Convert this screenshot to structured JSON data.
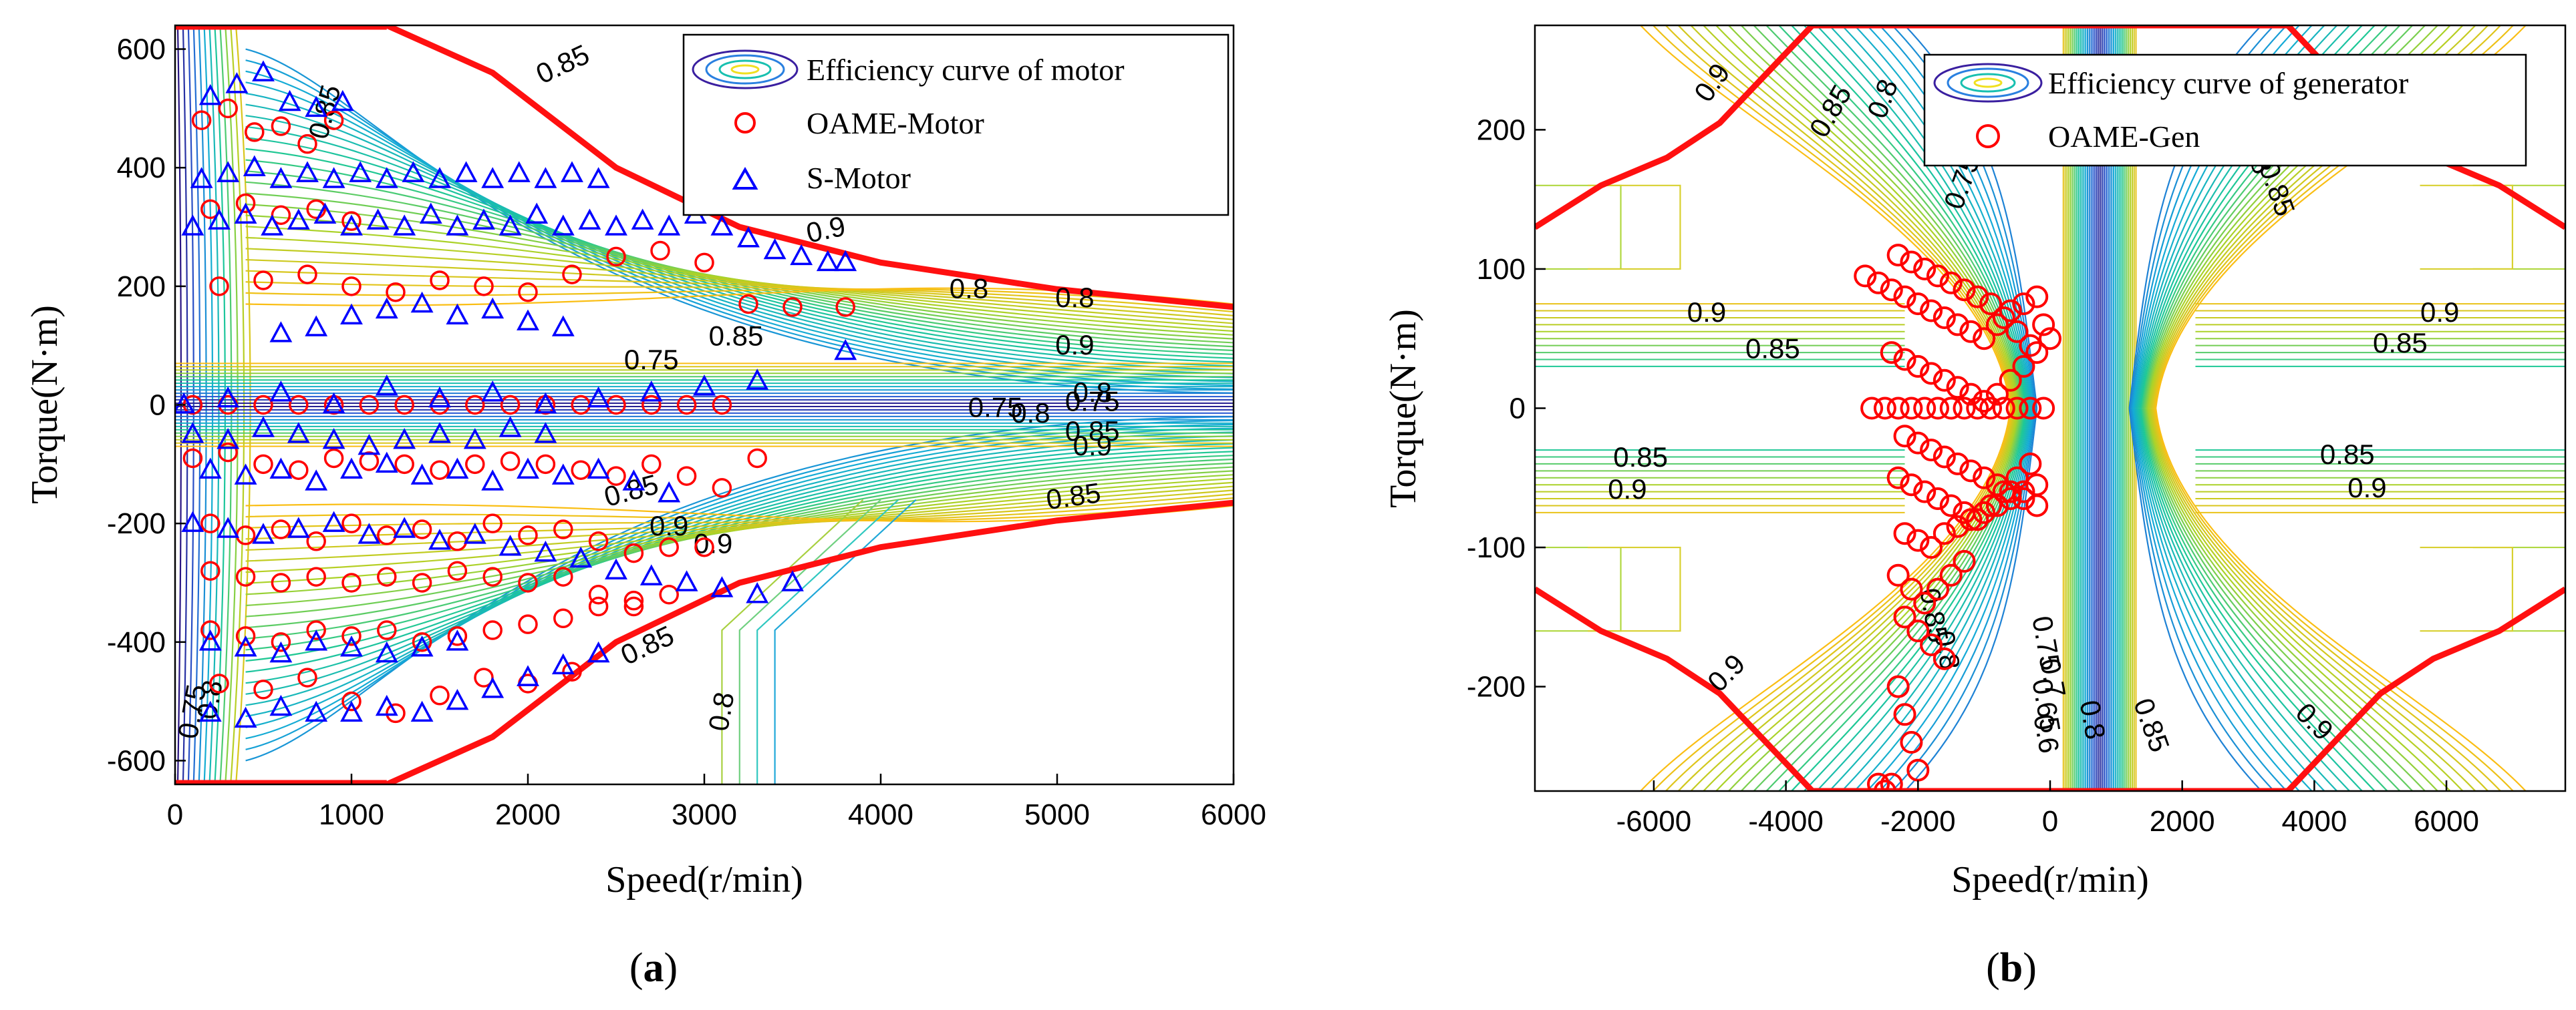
{
  "chart_data": [
    {
      "id": "a",
      "type": "scatter",
      "caption_letter": "a",
      "xlabel": "Speed(r/min)",
      "ylabel": "Torque(N·m)",
      "xlim": [
        0,
        6000
      ],
      "ylim": [
        -640,
        640
      ],
      "xticks": [
        "0",
        "1000",
        "2000",
        "3000",
        "4000",
        "5000",
        "6000"
      ],
      "yticks": [
        "-600",
        "-400",
        "-200",
        "0",
        "200",
        "400",
        "600"
      ],
      "legend": [
        "Efficiency curve of motor",
        "OAME-Motor",
        "S-Motor"
      ],
      "legend_position": "top-right",
      "contour_labels": [
        "0.85",
        "0.85",
        "0.8",
        "0.9",
        "0.8",
        "0.9",
        "0.85",
        "0.75",
        "0.75",
        "0.8",
        "0.75",
        "0.8",
        "0.85",
        "0.9",
        "0.85",
        "0.85",
        "0.9",
        "0.9",
        "0.85",
        "0.8",
        "0.75",
        "0.8"
      ],
      "max_torque_curve": {
        "x": [
          1200,
          1800,
          2500,
          3200,
          4000,
          5000,
          6000
        ],
        "y": [
          640,
          560,
          400,
          300,
          240,
          195,
          165
        ]
      },
      "series": [
        {
          "name": "OAME-Motor",
          "marker": "circle",
          "color": "#ff0000",
          "x": [
            150,
            300,
            450,
            600,
            750,
            900,
            200,
            400,
            600,
            800,
            1000,
            250,
            500,
            750,
            1000,
            1250,
            1500,
            1750,
            2000,
            2250,
            2500,
            2750,
            3000,
            3250,
            3500,
            3800,
            100,
            300,
            500,
            700,
            900,
            1100,
            1300,
            1500,
            1700,
            1900,
            2100,
            2300,
            2500,
            2700,
            2900,
            3100,
            100,
            300,
            500,
            700,
            900,
            1100,
            1300,
            1500,
            1700,
            1900,
            2100,
            2300,
            2500,
            2700,
            2900,
            3100,
            3300,
            200,
            400,
            600,
            800,
            1000,
            1200,
            1400,
            1600,
            1800,
            2000,
            2200,
            2400,
            2600,
            2800,
            3000,
            200,
            400,
            600,
            800,
            1000,
            1200,
            1400,
            1600,
            1800,
            2000,
            2200,
            2400,
            2600,
            2800,
            200,
            400,
            600,
            800,
            1000,
            1200,
            1400,
            1600,
            1800,
            2000,
            2200,
            2400,
            2600,
            250,
            500,
            750,
            1000,
            1250,
            1500,
            1750,
            2000,
            2250
          ],
          "y": [
            480,
            500,
            460,
            470,
            440,
            480,
            330,
            340,
            320,
            330,
            310,
            200,
            210,
            220,
            200,
            190,
            210,
            200,
            190,
            220,
            250,
            260,
            240,
            170,
            165,
            165,
            0,
            0,
            0,
            0,
            0,
            0,
            0,
            0,
            0,
            0,
            0,
            0,
            0,
            0,
            0,
            0,
            -90,
            -80,
            -100,
            -110,
            -90,
            -95,
            -100,
            -110,
            -100,
            -95,
            -100,
            -110,
            -120,
            -100,
            -120,
            -140,
            -90,
            -200,
            -220,
            -210,
            -230,
            -200,
            -220,
            -210,
            -230,
            -200,
            -220,
            -210,
            -230,
            -250,
            -240,
            -240,
            -280,
            -290,
            -300,
            -290,
            -300,
            -290,
            -300,
            -280,
            -290,
            -300,
            -290,
            -320,
            -330,
            -320,
            -380,
            -390,
            -400,
            -380,
            -390,
            -380,
            -400,
            -390,
            -380,
            -370,
            -360,
            -340,
            -340,
            -470,
            -480,
            -460,
            -500,
            -520,
            -490,
            -460,
            -470,
            -450
          ]
        },
        {
          "name": "S-Motor",
          "marker": "triangle",
          "color": "#0000ff",
          "x": [
            200,
            350,
            500,
            650,
            800,
            950,
            150,
            300,
            450,
            600,
            750,
            900,
            1050,
            1200,
            1350,
            1500,
            1650,
            1800,
            1950,
            2100,
            2250,
            2400,
            100,
            250,
            400,
            550,
            700,
            850,
            1000,
            1150,
            1300,
            1450,
            1600,
            1750,
            1900,
            2050,
            2200,
            2350,
            2500,
            2650,
            2800,
            2950,
            3100,
            3250,
            3400,
            3550,
            3700,
            3800,
            600,
            800,
            1000,
            1200,
            1400,
            1600,
            1800,
            2000,
            2200,
            50,
            300,
            600,
            900,
            1200,
            1500,
            1800,
            2100,
            2400,
            2700,
            3000,
            3300,
            3800,
            100,
            300,
            500,
            700,
            900,
            1100,
            1300,
            1500,
            1700,
            1900,
            2100,
            200,
            400,
            600,
            800,
            1000,
            1200,
            1400,
            1600,
            1800,
            2000,
            2200,
            2400,
            2600,
            2800,
            100,
            300,
            500,
            700,
            900,
            1100,
            1300,
            1500,
            1700,
            1900,
            2100,
            2300,
            2500,
            2700,
            2900,
            3100,
            3300,
            3500,
            200,
            400,
            600,
            800,
            1000,
            1200,
            1400,
            1600,
            200,
            400,
            600,
            800,
            1000,
            1200,
            1400,
            1600,
            1800,
            2000,
            2200,
            2400
          ],
          "y": [
            520,
            540,
            560,
            510,
            500,
            510,
            380,
            390,
            400,
            380,
            390,
            380,
            390,
            380,
            390,
            380,
            390,
            380,
            390,
            380,
            390,
            380,
            300,
            310,
            320,
            300,
            310,
            320,
            300,
            310,
            300,
            320,
            300,
            310,
            300,
            320,
            300,
            310,
            300,
            310,
            300,
            320,
            300,
            280,
            260,
            250,
            240,
            240,
            120,
            130,
            150,
            160,
            170,
            150,
            160,
            140,
            130,
            0,
            10,
            20,
            0,
            30,
            10,
            20,
            0,
            10,
            20,
            30,
            40,
            90,
            -50,
            -60,
            -40,
            -50,
            -60,
            -70,
            -60,
            -50,
            -60,
            -40,
            -50,
            -110,
            -120,
            -110,
            -130,
            -110,
            -100,
            -120,
            -110,
            -130,
            -110,
            -120,
            -110,
            -130,
            -150,
            -200,
            -210,
            -220,
            -210,
            -200,
            -220,
            -210,
            -230,
            -220,
            -240,
            -250,
            -260,
            -280,
            -290,
            -300,
            -310,
            -320,
            -300,
            -400,
            -410,
            -420,
            -400,
            -410,
            -420,
            -410,
            -400,
            -520,
            -530,
            -510,
            -520,
            -520,
            -510,
            -520,
            -500,
            -480,
            -460,
            -440,
            -420
          ]
        }
      ]
    },
    {
      "id": "b",
      "type": "scatter",
      "caption_letter": "b",
      "xlabel": "Speed(r/min)",
      "ylabel": "Torque(N·m)",
      "xlim": [
        -7800,
        7800
      ],
      "ylim": [
        -275,
        275
      ],
      "xticks": [
        "-6000",
        "-4000",
        "-2000",
        "0",
        "2000",
        "4000",
        "6000"
      ],
      "yticks": [
        "-200",
        "-100",
        "0",
        "100",
        "200"
      ],
      "legend": [
        "Efficiency curve of generator",
        "OAME-Gen"
      ],
      "legend_position": "top-right",
      "contour_labels": [
        "0.9",
        "0.85",
        "0.8",
        "0.75",
        "0.8",
        "0.85",
        "0.9",
        "0.85",
        "0.9",
        "0.85",
        "0.85",
        "0.9",
        "0.85",
        "0.9",
        "0.9",
        "0.85",
        "0.8",
        "0.75",
        "0.7",
        "0.65",
        "0.6",
        "0.8",
        "0.85",
        "0.9"
      ],
      "max_torque_curve": {
        "x": [
          -7800,
          -6800,
          -5800,
          -5000,
          -4300,
          -3600,
          3600,
          4300,
          5000,
          5800,
          6800,
          7800
        ],
        "y": [
          130,
          160,
          180,
          205,
          240,
          275,
          275,
          240,
          205,
          180,
          160,
          130
        ]
      },
      "series": [
        {
          "name": "OAME-Gen",
          "marker": "circle",
          "color": "#ff0000",
          "x": [
            -2800,
            -2600,
            -2400,
            -2200,
            -2000,
            -1800,
            -1600,
            -1400,
            -1200,
            -1000,
            -800,
            -600,
            -400,
            -200,
            -100,
            -2300,
            -2100,
            -1900,
            -1700,
            -1500,
            -1300,
            -1100,
            -900,
            -700,
            -500,
            -300,
            -2400,
            -2200,
            -2000,
            -1800,
            -1600,
            -1400,
            -1200,
            -1000,
            -800,
            -600,
            -400,
            -200,
            0,
            -2700,
            -2500,
            -2300,
            -2100,
            -1900,
            -1700,
            -1500,
            -1300,
            -1100,
            -900,
            -700,
            -500,
            -300,
            -100,
            -2200,
            -2000,
            -1800,
            -1600,
            -1400,
            -1200,
            -1000,
            -800,
            -600,
            -400,
            -200,
            -2300,
            -2100,
            -1900,
            -1700,
            -1500,
            -1300,
            -1100,
            -900,
            -700,
            -500,
            -300,
            -2200,
            -2000,
            -1800,
            -1600,
            -1400,
            -1200,
            -1000,
            -800,
            -600,
            -400,
            -200,
            -2300,
            -2100,
            -1900,
            -1700,
            -1500,
            -1300,
            -2200,
            -2000,
            -1800,
            -1600,
            -2300,
            -2200,
            -2100,
            -2000,
            -2400,
            -2500,
            -2600
          ],
          "y": [
            95,
            90,
            85,
            80,
            75,
            70,
            65,
            60,
            55,
            50,
            60,
            70,
            75,
            80,
            60,
            110,
            105,
            100,
            95,
            90,
            85,
            80,
            75,
            65,
            55,
            45,
            40,
            35,
            30,
            25,
            20,
            15,
            10,
            5,
            10,
            20,
            30,
            40,
            50,
            0,
            0,
            0,
            0,
            0,
            0,
            0,
            0,
            0,
            0,
            0,
            0,
            0,
            0,
            -20,
            -25,
            -30,
            -35,
            -40,
            -45,
            -50,
            -55,
            -60,
            -65,
            -70,
            -50,
            -55,
            -60,
            -65,
            -70,
            -75,
            -80,
            -70,
            -60,
            -50,
            -40,
            -90,
            -95,
            -100,
            -90,
            -85,
            -80,
            -75,
            -70,
            -65,
            -60,
            -55,
            -120,
            -130,
            -140,
            -130,
            -120,
            -110,
            -150,
            -160,
            -170,
            -180,
            -200,
            -220,
            -240,
            -260,
            -270,
            -275,
            -270
          ]
        }
      ]
    }
  ]
}
